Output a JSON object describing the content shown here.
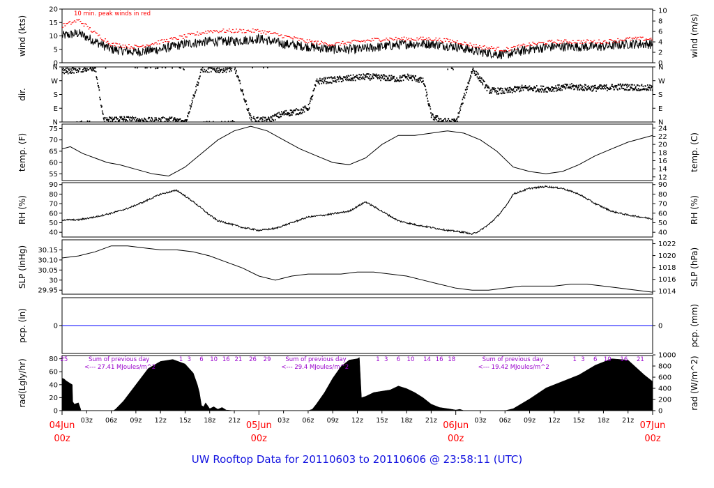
{
  "footer": {
    "title": "UW Rooftop Data for 20110603  to  20110606 @ 23:58:11  (UTC)"
  },
  "colors": {
    "data": "#000000",
    "peak": "#ff0000",
    "precip": "#0000ff",
    "solar": "#9900cc",
    "date": "#ff0000",
    "footer": "#1010e0"
  },
  "chart_data": [
    {
      "id": "wind",
      "type": "line",
      "ylabel": "wind (kts)",
      "ylabel_right": "wind (m/s)",
      "ylim": [
        0,
        20
      ],
      "yticks": [
        0,
        5,
        10,
        15,
        20
      ],
      "ylim_right": [
        0,
        10.29
      ],
      "yticks_right": [
        0,
        2,
        4,
        6,
        8,
        10
      ],
      "annotation": "10 min. peak winds in red",
      "series": [
        {
          "style": "noisy-line",
          "color": "#000000",
          "x": [
            0,
            4,
            8,
            12,
            18,
            24,
            30,
            36,
            42,
            48,
            54,
            60,
            66,
            72,
            78,
            84,
            90,
            96,
            102,
            108,
            114,
            120,
            126,
            132,
            138,
            144
          ],
          "y": [
            10,
            11,
            8,
            5,
            4,
            5,
            7,
            8,
            8,
            9,
            7,
            6,
            5,
            5,
            6,
            7,
            7,
            6,
            4,
            3,
            5,
            6,
            6,
            6,
            7,
            7
          ]
        },
        {
          "style": "dots",
          "name": "10 min. peak winds",
          "color": "#ff0000",
          "x": [
            0,
            4,
            8,
            12,
            18,
            24,
            30,
            36,
            42,
            48,
            54,
            60,
            66,
            72,
            78,
            84,
            90,
            96,
            102,
            108,
            114,
            120,
            126,
            132,
            138,
            144
          ],
          "y": [
            14,
            16,
            11,
            7,
            6,
            8,
            10,
            12,
            12,
            12,
            10,
            8,
            7,
            8,
            9,
            9,
            9,
            8,
            6,
            5,
            7,
            8,
            8,
            8,
            9,
            9
          ]
        }
      ]
    },
    {
      "id": "dir",
      "type": "scatter",
      "ylabel": "dir.",
      "ylabel_right": "",
      "ylim": [
        0,
        360
      ],
      "yticks": [
        0,
        90,
        180,
        270,
        360
      ],
      "yticklabels": [
        "N",
        "E",
        "S",
        "W",
        "N"
      ],
      "series": [
        {
          "style": "scatter-dir",
          "color": "#000000",
          "x": [
            0,
            3,
            6,
            8,
            10,
            14,
            18,
            22,
            26,
            30,
            34,
            38,
            42,
            46,
            50,
            52,
            54,
            58,
            60,
            62,
            66,
            70,
            74,
            78,
            82,
            84,
            86,
            88,
            90,
            93,
            96,
            100,
            104,
            108,
            112,
            118,
            124,
            130,
            136,
            144
          ],
          "y": [
            335,
            345,
            355,
            358,
            15,
            25,
            18,
            12,
            20,
            5,
            350,
            345,
            355,
            20,
            15,
            40,
            60,
            75,
            100,
            270,
            280,
            290,
            300,
            295,
            285,
            300,
            290,
            270,
            40,
            10,
            5,
            350,
            210,
            205,
            225,
            220,
            235,
            225,
            235,
            225
          ]
        }
      ]
    },
    {
      "id": "temp",
      "type": "line",
      "ylabel": "temp. (F)",
      "ylabel_right": "temp. (C)",
      "ylim": [
        52,
        77
      ],
      "yticks": [
        55,
        60,
        65,
        70,
        75
      ],
      "ylim_right": [
        11.1,
        25.0
      ],
      "yticks_right": [
        12,
        14,
        16,
        18,
        20,
        22,
        24
      ],
      "series": [
        {
          "style": "line",
          "color": "#000000",
          "x": [
            0,
            2,
            5,
            8,
            11,
            14,
            18,
            22,
            26,
            30,
            34,
            38,
            42,
            46,
            50,
            54,
            58,
            62,
            66,
            70,
            74,
            78,
            82,
            86,
            90,
            94,
            98,
            102,
            106,
            110,
            114,
            118,
            122,
            126,
            130,
            134,
            138,
            144
          ],
          "y": [
            66,
            67,
            64,
            62,
            60,
            59,
            57,
            55,
            54,
            58,
            64,
            70,
            74,
            76,
            74,
            70,
            66,
            63,
            60,
            59,
            62,
            68,
            72,
            72,
            73,
            74,
            73,
            70,
            65,
            58,
            56,
            55,
            56,
            59,
            63,
            66,
            69,
            72
          ]
        }
      ]
    },
    {
      "id": "rh",
      "type": "line",
      "ylabel": "RH (%)",
      "ylabel_right": "RH (%)",
      "ylim": [
        35,
        92
      ],
      "yticks": [
        40,
        50,
        60,
        70,
        80,
        90
      ],
      "ylim_right": [
        35,
        92
      ],
      "yticks_right": [
        40,
        50,
        60,
        70,
        80,
        90
      ],
      "series": [
        {
          "style": "noisy-line",
          "color": "#000000",
          "x": [
            0,
            4,
            8,
            12,
            16,
            20,
            24,
            28,
            32,
            36,
            38,
            40,
            44,
            48,
            52,
            56,
            60,
            64,
            70,
            74,
            78,
            82,
            86,
            90,
            94,
            98,
            100,
            102,
            104,
            106,
            108,
            110,
            114,
            118,
            122,
            126,
            130,
            134,
            138,
            144
          ],
          "y": [
            53,
            53,
            56,
            60,
            65,
            72,
            80,
            84,
            72,
            58,
            52,
            50,
            45,
            42,
            44,
            50,
            56,
            58,
            62,
            72,
            62,
            52,
            48,
            45,
            42,
            40,
            38,
            42,
            48,
            56,
            66,
            80,
            86,
            88,
            86,
            80,
            70,
            62,
            58,
            54
          ]
        }
      ]
    },
    {
      "id": "slp",
      "type": "line",
      "ylabel": "SLP (inHg)",
      "ylabel_right": "SLP (hPa)",
      "ylim": [
        29.93,
        30.2
      ],
      "yticks": [
        29.95,
        30.0,
        30.05,
        30.1,
        30.15
      ],
      "ylim_right": [
        1013.5,
        1022.65
      ],
      "yticks_right": [
        1014,
        1016,
        1018,
        1020,
        1022
      ],
      "series": [
        {
          "style": "line",
          "color": "#000000",
          "x": [
            0,
            4,
            8,
            12,
            16,
            20,
            24,
            28,
            32,
            36,
            40,
            44,
            48,
            52,
            56,
            60,
            64,
            68,
            72,
            76,
            80,
            84,
            88,
            92,
            96,
            100,
            104,
            108,
            112,
            116,
            120,
            124,
            128,
            132,
            136,
            140,
            144
          ],
          "y": [
            30.11,
            30.12,
            30.14,
            30.17,
            30.17,
            30.16,
            30.15,
            30.15,
            30.14,
            30.12,
            30.09,
            30.06,
            30.02,
            30.0,
            30.02,
            30.03,
            30.03,
            30.03,
            30.04,
            30.04,
            30.03,
            30.02,
            30.0,
            29.98,
            29.96,
            29.95,
            29.95,
            29.96,
            29.97,
            29.97,
            29.97,
            29.98,
            29.98,
            29.97,
            29.96,
            29.95,
            29.94
          ]
        }
      ]
    },
    {
      "id": "pcp",
      "type": "line",
      "ylabel": "pcp. (in)",
      "ylabel_right": "pcp. (mm)",
      "ylim": [
        -1,
        1
      ],
      "yticks": [
        0
      ],
      "ylim_right": [
        -1,
        1
      ],
      "yticks_right": [
        0
      ],
      "series": [
        {
          "style": "line",
          "color": "#0000ff",
          "x": [
            0,
            144
          ],
          "y": [
            0,
            0
          ]
        }
      ]
    },
    {
      "id": "rad",
      "type": "area",
      "ylabel": "rad(Lgly/hr)",
      "ylabel_right": "rad (W/m^2)",
      "ylim": [
        0,
        85
      ],
      "yticks": [
        0,
        20,
        40,
        60,
        80
      ],
      "ylim_right": [
        0,
        988
      ],
      "yticks_right": [
        0,
        200,
        400,
        600,
        800,
        1000
      ],
      "series": [
        {
          "style": "area",
          "color": "#000000",
          "x": [
            0,
            0.5,
            1,
            2,
            2.5,
            2.6,
            3,
            4,
            4.5,
            4.6,
            6,
            12.5,
            13,
            15,
            18,
            21,
            24,
            27,
            30,
            32,
            33,
            33.5,
            34,
            34.5,
            35,
            36,
            37,
            38,
            39,
            40,
            42,
            60,
            61,
            62,
            64,
            66,
            68,
            70,
            72,
            72.5,
            73,
            74,
            76,
            78,
            80,
            82,
            84,
            86,
            88,
            90,
            92,
            94,
            95,
            96,
            97,
            98,
            100,
            102,
            108,
            110,
            114,
            118,
            122,
            126,
            130,
            134,
            138,
            142,
            144
          ],
          "y": [
            50,
            49,
            46,
            42,
            40,
            14,
            10,
            12,
            3,
            0,
            0,
            0,
            2,
            15,
            40,
            65,
            76,
            79,
            72,
            58,
            40,
            28,
            8,
            6,
            12,
            3,
            6,
            2,
            5,
            1,
            0,
            0,
            2,
            10,
            28,
            50,
            68,
            78,
            80,
            82,
            20,
            22,
            28,
            30,
            32,
            38,
            34,
            28,
            20,
            10,
            5,
            3,
            2,
            1,
            2,
            0,
            0,
            0,
            0,
            3,
            18,
            35,
            45,
            55,
            70,
            80,
            78,
            55,
            45
          ]
        }
      ],
      "annotations": [
        {
          "day_offset": 0,
          "sum_label": "Sum of previous day",
          "value_label": "<--- 27.41 MJoules/m^2"
        },
        {
          "day_offset": 48,
          "sum_label": "Sum of previous day",
          "value_label": "<--- 29.4 MJoules/m^2"
        },
        {
          "day_offset": 96,
          "sum_label": "Sum of previous day",
          "value_label": "<--- 19.42 MJoules/m^2"
        }
      ],
      "solar_hour_labels": [
        {
          "x": 0.5,
          "label": "25"
        },
        {
          "x": 29,
          "label": "1"
        },
        {
          "x": 31,
          "label": "3"
        },
        {
          "x": 34,
          "label": "6"
        },
        {
          "x": 37,
          "label": "10"
        },
        {
          "x": 40,
          "label": "16"
        },
        {
          "x": 43,
          "label": "21"
        },
        {
          "x": 46.5,
          "label": "26"
        },
        {
          "x": 50,
          "label": "29"
        },
        {
          "x": 77,
          "label": "1"
        },
        {
          "x": 79,
          "label": "3"
        },
        {
          "x": 82,
          "label": "6"
        },
        {
          "x": 85,
          "label": "10"
        },
        {
          "x": 89,
          "label": "14"
        },
        {
          "x": 92,
          "label": "16"
        },
        {
          "x": 95,
          "label": "18"
        },
        {
          "x": 125,
          "label": "1"
        },
        {
          "x": 127,
          "label": "3"
        },
        {
          "x": 130,
          "label": "6"
        },
        {
          "x": 133,
          "label": "10"
        },
        {
          "x": 137,
          "label": "16"
        },
        {
          "x": 141,
          "label": "21"
        }
      ]
    }
  ],
  "x_axis": {
    "xlim": [
      0,
      144
    ],
    "ticks": [
      {
        "x": 6,
        "label": "03z"
      },
      {
        "x": 12,
        "label": "06z"
      },
      {
        "x": 18,
        "label": "09z"
      },
      {
        "x": 24,
        "label": "12z"
      },
      {
        "x": 30,
        "label": "15z"
      },
      {
        "x": 36,
        "label": "18z"
      },
      {
        "x": 42,
        "label": "21z"
      },
      {
        "x": 54,
        "label": "03z"
      },
      {
        "x": 60,
        "label": "06z"
      },
      {
        "x": 66,
        "label": "09z"
      },
      {
        "x": 72,
        "label": "12z"
      },
      {
        "x": 78,
        "label": "15z"
      },
      {
        "x": 84,
        "label": "18z"
      },
      {
        "x": 90,
        "label": "21z"
      },
      {
        "x": 102,
        "label": "03z"
      },
      {
        "x": 108,
        "label": "06z"
      },
      {
        "x": 114,
        "label": "09z"
      },
      {
        "x": 120,
        "label": "12z"
      },
      {
        "x": 126,
        "label": "15z"
      },
      {
        "x": 132,
        "label": "18z"
      },
      {
        "x": 138,
        "label": "21z"
      }
    ],
    "date_labels": [
      {
        "x": 0,
        "date": "04Jun",
        "time": "00z"
      },
      {
        "x": 48,
        "date": "05Jun",
        "time": "00z"
      },
      {
        "x": 96,
        "date": "06Jun",
        "time": "00z"
      },
      {
        "x": 144,
        "date": "07Jun",
        "time": "00z"
      }
    ]
  }
}
